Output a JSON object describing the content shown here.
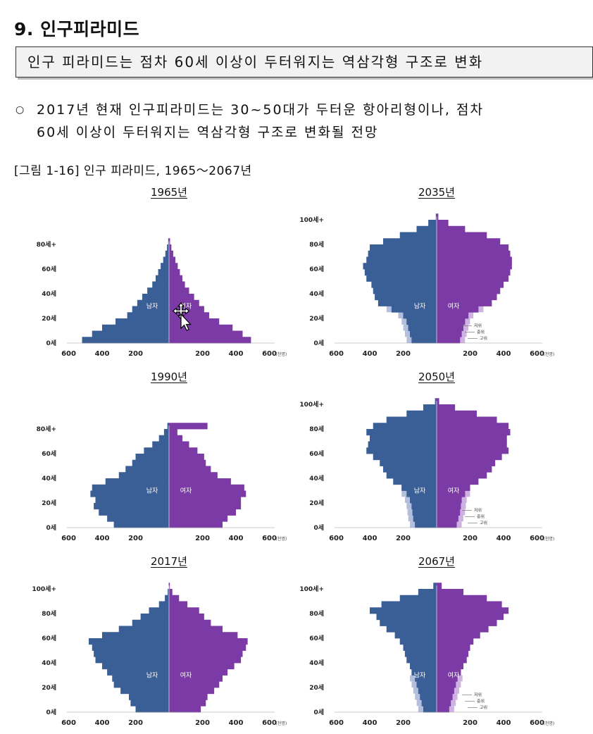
{
  "section": {
    "number": "9.",
    "title": "인구피라미드"
  },
  "summary": "인구 피라미드는 점차 60세 이상이 두터워지는 역삼각형 구조로 변화",
  "bullet": {
    "symbol": "○",
    "line1": "2017년 현재 인구피라미드는 30~50대가 두터운 항아리형이나, 점차",
    "line2": "60세 이상이 두터워지는 역삼각형 구조로 변화될 전망"
  },
  "figure": {
    "caption": "[그림 1-16] 인구 피라미드, 1965～2067년"
  },
  "colors": {
    "male": "#3a5f97",
    "female": "#7b3aa6",
    "male_band": "#b3bfdc",
    "female_band": "#cdb2e2"
  },
  "common": {
    "x_ticks_left": [
      "600",
      "400",
      "200"
    ],
    "x_ticks_right": [
      "200",
      "400",
      "600"
    ],
    "unit": "(천명)",
    "male_label": "남자",
    "female_label": "여자",
    "scenario_labels": [
      "저위",
      "중위",
      "고위"
    ]
  },
  "chart_data": [
    {
      "type": "population-pyramid",
      "title": "1965년",
      "y_ticks": [
        "80세+",
        "60세",
        "40세",
        "20세",
        "0세"
      ],
      "xlim": [
        -600,
        600
      ],
      "ylim": [
        0,
        100
      ],
      "male_label": "남자",
      "female_label": "여자",
      "ages": [
        0,
        5,
        10,
        15,
        20,
        25,
        30,
        35,
        40,
        45,
        50,
        55,
        60,
        65,
        70,
        75,
        80
      ],
      "male": [
        520,
        460,
        400,
        320,
        250,
        220,
        190,
        160,
        130,
        100,
        80,
        65,
        50,
        35,
        22,
        12,
        5
      ],
      "female": [
        490,
        440,
        380,
        300,
        240,
        210,
        180,
        150,
        120,
        95,
        80,
        65,
        52,
        38,
        25,
        14,
        6
      ]
    },
    {
      "type": "population-pyramid",
      "title": "2035년",
      "y_ticks": [
        "100세+",
        "80세",
        "60세",
        "40세",
        "20세",
        "0세"
      ],
      "xlim": [
        -600,
        600
      ],
      "ylim": [
        0,
        100
      ],
      "male_label": "남자",
      "female_label": "여자",
      "scenario_labels": [
        "저위",
        "중위",
        "고위"
      ],
      "ages": [
        0,
        5,
        10,
        15,
        20,
        25,
        30,
        35,
        40,
        45,
        50,
        55,
        60,
        65,
        70,
        75,
        80,
        85,
        90,
        95,
        100
      ],
      "male": [
        150,
        160,
        170,
        180,
        200,
        270,
        350,
        370,
        380,
        390,
        420,
        430,
        440,
        420,
        410,
        400,
        320,
        220,
        120,
        50,
        5
      ],
      "female": [
        140,
        150,
        160,
        170,
        190,
        250,
        330,
        360,
        380,
        400,
        430,
        440,
        450,
        450,
        440,
        430,
        380,
        300,
        170,
        70,
        10
      ]
    },
    {
      "type": "population-pyramid",
      "title": "1990년",
      "y_ticks": [
        "80세+",
        "60세",
        "40세",
        "20세",
        "0세"
      ],
      "xlim": [
        -600,
        600
      ],
      "ylim": [
        0,
        100
      ],
      "male_label": "남자",
      "female_label": "여자",
      "ages": [
        0,
        5,
        10,
        15,
        20,
        25,
        30,
        35,
        40,
        45,
        50,
        55,
        60,
        65,
        70,
        75,
        80
      ],
      "male": [
        330,
        370,
        420,
        450,
        440,
        470,
        460,
        380,
        300,
        260,
        220,
        200,
        150,
        100,
        60,
        30,
        10
      ],
      "female": [
        320,
        350,
        400,
        430,
        430,
        460,
        450,
        370,
        290,
        250,
        220,
        210,
        170,
        120,
        80,
        50,
        230
      ]
    },
    {
      "type": "population-pyramid",
      "title": "2050년",
      "y_ticks": [
        "100세+",
        "80세",
        "60세",
        "40세",
        "20세",
        "0세"
      ],
      "xlim": [
        -600,
        600
      ],
      "ylim": [
        0,
        100
      ],
      "male_label": "남자",
      "female_label": "여자",
      "scenario_labels": [
        "저위",
        "중위",
        "고위"
      ],
      "ages": [
        0,
        5,
        10,
        15,
        20,
        25,
        30,
        35,
        40,
        45,
        50,
        55,
        60,
        65,
        70,
        75,
        80,
        85,
        90,
        95,
        100
      ],
      "male": [
        130,
        140,
        145,
        150,
        160,
        180,
        210,
        260,
        300,
        320,
        340,
        380,
        420,
        410,
        400,
        420,
        380,
        300,
        180,
        80,
        10
      ],
      "female": [
        120,
        130,
        140,
        145,
        150,
        170,
        200,
        250,
        300,
        330,
        350,
        390,
        430,
        420,
        420,
        440,
        430,
        360,
        240,
        110,
        15
      ]
    },
    {
      "type": "population-pyramid",
      "title": "2017년",
      "y_ticks": [
        "100세+",
        "80세",
        "60세",
        "40세",
        "20세",
        "0세"
      ],
      "xlim": [
        -600,
        600
      ],
      "ylim": [
        0,
        100
      ],
      "male_label": "남자",
      "female_label": "여자",
      "ages": [
        0,
        5,
        10,
        15,
        20,
        25,
        30,
        35,
        40,
        45,
        50,
        55,
        60,
        65,
        70,
        75,
        80,
        85,
        90,
        95,
        100
      ],
      "male": [
        200,
        230,
        240,
        290,
        330,
        340,
        370,
        400,
        440,
        450,
        460,
        480,
        400,
        300,
        220,
        170,
        120,
        60,
        25,
        8,
        2
      ],
      "female": [
        190,
        220,
        230,
        270,
        300,
        320,
        350,
        390,
        430,
        440,
        460,
        470,
        410,
        320,
        250,
        210,
        180,
        110,
        60,
        20,
        5
      ]
    },
    {
      "type": "population-pyramid",
      "title": "2067년",
      "y_ticks": [
        "100세+",
        "80세",
        "60세",
        "40세",
        "20세",
        "0세"
      ],
      "xlim": [
        -600,
        600
      ],
      "ylim": [
        0,
        100
      ],
      "male_label": "남자",
      "female_label": "여자",
      "scenario_labels": [
        "저위",
        "중위",
        "고위"
      ],
      "ages": [
        0,
        5,
        10,
        15,
        20,
        25,
        30,
        35,
        40,
        45,
        50,
        55,
        60,
        65,
        70,
        75,
        80,
        85,
        90,
        95,
        100
      ],
      "male": [
        80,
        90,
        100,
        110,
        120,
        130,
        150,
        160,
        180,
        190,
        200,
        220,
        250,
        300,
        340,
        360,
        400,
        330,
        220,
        110,
        20
      ],
      "female": [
        75,
        85,
        95,
        105,
        115,
        125,
        145,
        160,
        180,
        190,
        200,
        220,
        260,
        310,
        360,
        400,
        430,
        390,
        300,
        160,
        30
      ]
    }
  ]
}
